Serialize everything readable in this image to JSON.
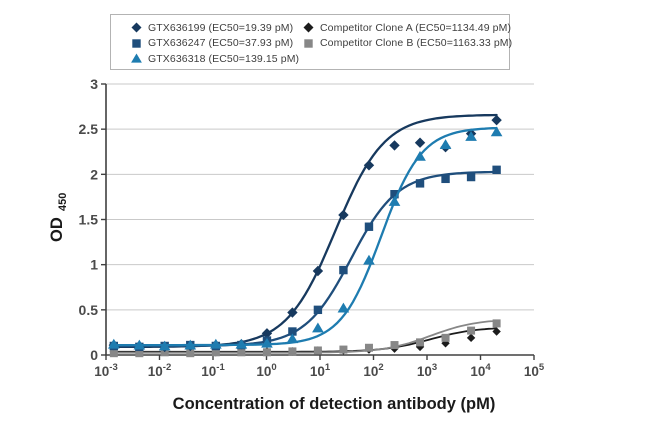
{
  "figure": {
    "ylabel_main": "OD",
    "ylabel_sub": "450"
  },
  "legend": {
    "column1_series": [
      0,
      1,
      2
    ],
    "column2_series": [
      3,
      4
    ],
    "border_color": "#b3b3b3"
  },
  "layout_colors": {
    "axis": "#404040",
    "grid": "#c9c9c9",
    "tick_label": "#4a4a4a",
    "axis_title": "#1a1a1a",
    "background": "#ffffff"
  },
  "chart_data": {
    "type": "scatter",
    "subtype": "dose-response-4PL",
    "title": "",
    "xlabel": "Concentration of detection antibody (pM)",
    "ylabel": "OD 450",
    "xscale": "log",
    "xlim_exponents": [
      -3,
      5
    ],
    "xtick_exponents": [
      -3,
      -2,
      -1,
      0,
      1,
      2,
      3,
      4,
      5
    ],
    "ylim": [
      0,
      3
    ],
    "yticks": [
      0,
      0.5,
      1,
      1.5,
      2,
      2.5,
      3
    ],
    "grid": "horizontal",
    "legend_position": "top-center-boxed",
    "x_pM": [
      0.0014,
      0.0042,
      0.0125,
      0.0376,
      0.113,
      0.339,
      1.02,
      3.05,
      9.14,
      27.4,
      82.3,
      247,
      741,
      2222,
      6667,
      20000
    ],
    "series": [
      {
        "name": "GTX636199",
        "legend_label": "GTX636199 (EC50=19.39 pM)",
        "ec50_pM": 19.39,
        "marker": "diamond",
        "color": "#17395e",
        "marker_size": 5.2,
        "line_width": 2.3,
        "od450": [
          0.11,
          0.1,
          0.09,
          0.1,
          0.11,
          0.12,
          0.24,
          0.47,
          0.93,
          1.55,
          2.1,
          2.32,
          2.35,
          2.3,
          2.45,
          2.6
        ],
        "fit": {
          "bottom": 0.09,
          "top": 2.66,
          "ec50": 19.39,
          "hill": 0.95
        }
      },
      {
        "name": "GTX636247",
        "legend_label": "GTX636247 (EC50=37.93 pM)",
        "ec50_pM": 37.93,
        "marker": "square",
        "color": "#1f4e7c",
        "marker_size": 4.2,
        "line_width": 2.3,
        "od450": [
          0.1,
          0.09,
          0.1,
          0.11,
          0.1,
          0.11,
          0.16,
          0.26,
          0.5,
          0.94,
          1.42,
          1.78,
          1.9,
          1.95,
          1.97,
          2.05
        ],
        "fit": {
          "bottom": 0.1,
          "top": 2.03,
          "ec50": 37.93,
          "hill": 1.0
        }
      },
      {
        "name": "GTX636318",
        "legend_label": "GTX636318 (EC50=139.15 pM)",
        "ec50_pM": 139.15,
        "marker": "triangle",
        "color": "#1e7cb0",
        "marker_size": 5.4,
        "line_width": 2.3,
        "od450": [
          0.12,
          0.11,
          0.1,
          0.11,
          0.12,
          0.12,
          0.13,
          0.18,
          0.3,
          0.52,
          1.05,
          1.7,
          2.2,
          2.33,
          2.42,
          2.47
        ],
        "fit": {
          "bottom": 0.11,
          "top": 2.52,
          "ec50": 139.15,
          "hill": 1.15
        }
      },
      {
        "name": "Competitor Clone A",
        "legend_label": "Competitor Clone A (EC50=1134.49 pM)",
        "ec50_pM": 1134.49,
        "marker": "diamond",
        "color": "#1c1c1c",
        "marker_size": 4.2,
        "line_width": 1.8,
        "od450": [
          0.04,
          0.03,
          0.04,
          0.04,
          0.03,
          0.04,
          0.04,
          0.04,
          0.05,
          0.05,
          0.06,
          0.07,
          0.09,
          0.13,
          0.19,
          0.26
        ],
        "fit": {
          "bottom": 0.035,
          "top": 0.31,
          "ec50": 1134.49,
          "hill": 1.0
        }
      },
      {
        "name": "Competitor Clone B",
        "legend_label": "Competitor Clone B (EC50=1163.33 pM)",
        "ec50_pM": 1163.33,
        "marker": "square",
        "color": "#878787",
        "marker_size": 4.0,
        "line_width": 1.8,
        "od450": [
          0.02,
          0.02,
          0.03,
          0.02,
          0.03,
          0.03,
          0.03,
          0.04,
          0.05,
          0.06,
          0.08,
          0.11,
          0.14,
          0.19,
          0.27,
          0.35
        ],
        "fit": {
          "bottom": 0.025,
          "top": 0.4,
          "ec50": 1163.33,
          "hill": 1.0
        }
      }
    ]
  }
}
